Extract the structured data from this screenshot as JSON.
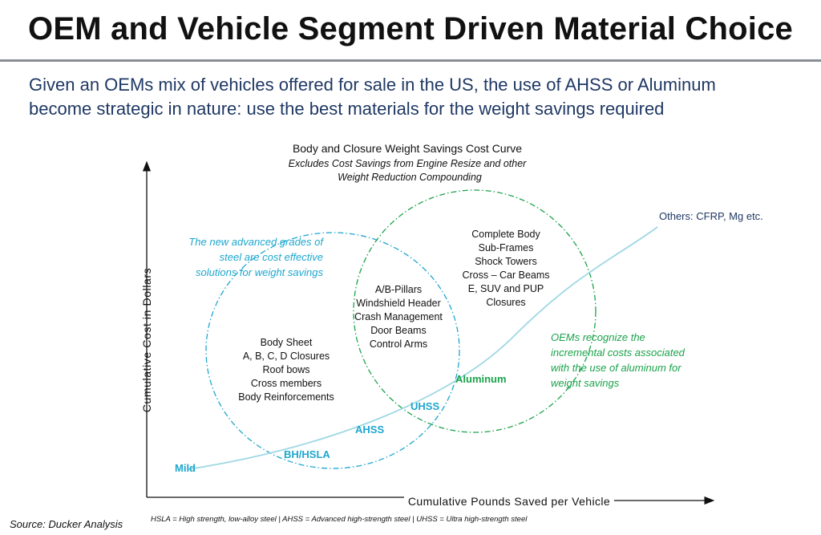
{
  "header": {
    "title": "OEM and Vehicle Segment Driven Material Choice",
    "subtitle_line1": "Given an OEMs mix of vehicles offered for sale in the US, the use of AHSS or Aluminum",
    "subtitle_line2": "become strategic in nature: use the best materials for the weight savings required"
  },
  "diagram": {
    "title": "Body and Closure Weight Savings Cost Curve",
    "subtitle_line1": "Excludes Cost Savings from Engine Resize and other",
    "subtitle_line2": "Weight Reduction Compounding",
    "y_axis_label": "Cumulative Cost in Dollars",
    "x_axis_label": "Cumulative Pounds Saved per Vehicle",
    "curve_points": {
      "mild": "Mild",
      "bh_hsla": "BH/HSLA",
      "ahss": "AHSS",
      "uhss": "UHSS",
      "aluminum": "Aluminum",
      "others": "Others: CFRP, Mg etc."
    },
    "steel_note": [
      "The new advanced grades of",
      "steel are cost effective",
      "solutions for weight savings"
    ],
    "aluminum_note": [
      "OEMs recognize the",
      "incremental costs associated",
      "with the use of aluminum for",
      "weight savings"
    ],
    "steel_parts": [
      "Body Sheet",
      "A, B, C, D Closures",
      "Roof bows",
      "Cross members",
      "Body Reinforcements"
    ],
    "overlap_parts": [
      "A/B-Pillars",
      "Windshield Header",
      "Crash Management",
      "Door Beams",
      "Control Arms"
    ],
    "aluminum_parts": [
      "Complete Body",
      "Sub-Frames",
      "Shock Towers",
      "Cross – Car Beams",
      "E, SUV and PUP",
      "Closures"
    ]
  },
  "footer": {
    "source": "Source: Ducker Analysis",
    "abbreviations": "HSLA = High strength, low-alloy steel | AHSS = Advanced high-strength steel | UHSS = Ultra high-strength steel"
  },
  "colors": {
    "title": "#111111",
    "subtitle": "#1f3864",
    "steel": "#1ea7cf",
    "aluminum": "#1aa34a",
    "curve": "#9fd8e4",
    "others": "#1f3864"
  }
}
